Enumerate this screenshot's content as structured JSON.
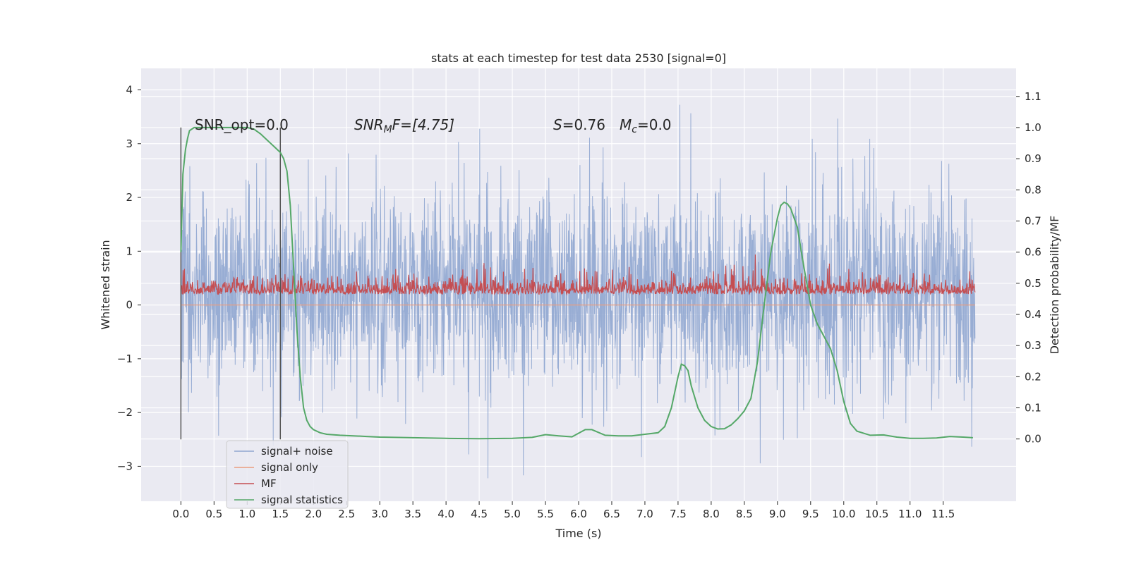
{
  "chart_data": {
    "type": "line",
    "title": "stats at each timestep for test data 2530 [signal=0]",
    "xlabel": "Time (s)",
    "ylabel": "Whitened strain",
    "ylabel_right": "Detection probability/MF",
    "xlim": [
      -0.6,
      12.6
    ],
    "ylim": [
      -3.65,
      4.4
    ],
    "ylim_right": [
      -0.2,
      1.19
    ],
    "x_ticks": [
      "0.0",
      "0.5",
      "1.0",
      "1.5",
      "2.0",
      "2.5",
      "3.0",
      "3.5",
      "4.0",
      "4.5",
      "5.0",
      "5.5",
      "6.0",
      "6.5",
      "7.0",
      "7.5",
      "8.0",
      "8.5",
      "9.0",
      "9.5",
      "10.0",
      "10.5",
      "11.0",
      "11.5"
    ],
    "y_ticks": [
      "−3",
      "−2",
      "−1",
      "0",
      "1",
      "2",
      "3",
      "4"
    ],
    "y_ticks_right": [
      "0.0",
      "0.1",
      "0.2",
      "0.3",
      "0.4",
      "0.5",
      "0.6",
      "0.7",
      "0.8",
      "0.9",
      "1.0",
      "1.1"
    ],
    "grid": true,
    "legend_position": "lower-left",
    "colors": {
      "noise": "#8fa6d0",
      "signal_only": "#e99d80",
      "mf": "#c44e52",
      "statistics": "#55a868",
      "background": "#eaeaf2",
      "grid": "#ffffff",
      "vline": "#555555"
    },
    "annotations": {
      "snr_opt": "SNR_opt=0.0",
      "snr_mf_label": "SNR",
      "snr_mf_sub": "M",
      "snr_mf_value": "F=[4.75]",
      "s_label": "S",
      "s_value": "=0.76",
      "mc_label": "M",
      "mc_sub": "c",
      "mc_value": "=0.0"
    },
    "series": [
      {
        "name": "signal+ noise",
        "axis": "left",
        "x_range": [
          0.0,
          11.98
        ],
        "envelope_approx": {
          "low": [
            -3.3,
            -1.0
          ],
          "high": [
            1.0,
            4.1
          ]
        }
      },
      {
        "name": "signal only",
        "axis": "left",
        "x": [
          0.0,
          11.98
        ],
        "values": [
          0.0,
          0.0
        ]
      },
      {
        "name": "MF",
        "axis": "left",
        "x_range": [
          0.0,
          11.98
        ],
        "envelope_approx": {
          "low": [
            0.0,
            0.1
          ],
          "high": [
            0.4,
            1.0
          ]
        }
      },
      {
        "name": "signal statistics",
        "axis": "right",
        "x": [
          0.0,
          0.03,
          0.07,
          0.1,
          0.13,
          0.2,
          0.3,
          0.5,
          0.8,
          1.0,
          1.1,
          1.2,
          1.3,
          1.4,
          1.5,
          1.55,
          1.6,
          1.65,
          1.7,
          1.75,
          1.8,
          1.85,
          1.9,
          1.95,
          2.0,
          2.1,
          2.2,
          2.4,
          2.6,
          2.8,
          3.0,
          3.5,
          4.0,
          4.5,
          5.0,
          5.3,
          5.5,
          5.7,
          5.9,
          6.1,
          6.2,
          6.4,
          6.6,
          6.8,
          7.0,
          7.2,
          7.3,
          7.4,
          7.5,
          7.55,
          7.6,
          7.65,
          7.7,
          7.8,
          7.9,
          8.0,
          8.1,
          8.2,
          8.3,
          8.4,
          8.5,
          8.6,
          8.7,
          8.8,
          8.9,
          9.0,
          9.05,
          9.1,
          9.15,
          9.2,
          9.3,
          9.4,
          9.5,
          9.6,
          9.7,
          9.8,
          9.9,
          10.0,
          10.1,
          10.2,
          10.4,
          10.6,
          10.8,
          11.0,
          11.2,
          11.4,
          11.6,
          11.8,
          11.95
        ],
        "values": [
          0.6,
          0.85,
          0.93,
          0.965,
          0.99,
          1.0,
          1.0,
          1.0,
          1.0,
          1.0,
          0.995,
          0.98,
          0.96,
          0.94,
          0.92,
          0.9,
          0.86,
          0.75,
          0.55,
          0.35,
          0.2,
          0.1,
          0.06,
          0.04,
          0.03,
          0.02,
          0.015,
          0.012,
          0.01,
          0.008,
          0.006,
          0.004,
          0.002,
          0.001,
          0.002,
          0.005,
          0.014,
          0.01,
          0.007,
          0.03,
          0.03,
          0.012,
          0.01,
          0.01,
          0.015,
          0.02,
          0.04,
          0.1,
          0.2,
          0.24,
          0.235,
          0.22,
          0.17,
          0.1,
          0.06,
          0.04,
          0.032,
          0.033,
          0.045,
          0.065,
          0.09,
          0.13,
          0.25,
          0.43,
          0.6,
          0.71,
          0.75,
          0.76,
          0.755,
          0.74,
          0.68,
          0.55,
          0.43,
          0.37,
          0.33,
          0.29,
          0.22,
          0.12,
          0.05,
          0.025,
          0.012,
          0.013,
          0.006,
          0.002,
          0.002,
          0.003,
          0.008,
          0.006,
          0.004
        ]
      }
    ]
  }
}
